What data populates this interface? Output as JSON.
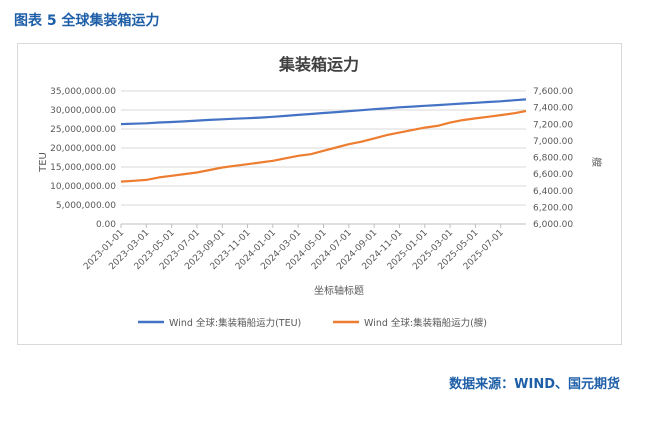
{
  "caption": "图表 5  全球集装箱运力",
  "source": "数据来源：WIND、国元期货",
  "colors": {
    "series1": "#4472c4",
    "series2": "#ed7d31",
    "grid": "#d9d9d9",
    "axis_text": "#595959",
    "caption": "#1f5fa8"
  },
  "chart_data": {
    "type": "line",
    "title": "集装箱运力",
    "xlabel": "坐标轴标题",
    "ylabel_left": "TEU",
    "ylabel_right": "艘",
    "ylim_left": [
      0,
      35000000
    ],
    "ylim_right": [
      6000,
      7600
    ],
    "left_ticks": [
      "35,000,000.00",
      "30,000,000.00",
      "25,000,000.00",
      "20,000,000.00",
      "15,000,000.00",
      "10,000,000.00",
      "5,000,000.00",
      "0.00"
    ],
    "right_ticks": [
      "7,600.00",
      "7,400.00",
      "7,200.00",
      "7,000.00",
      "6,800.00",
      "6,600.00",
      "6,400.00",
      "6,200.00",
      "6,000.00"
    ],
    "x_ticks": [
      "2023-01-01",
      "2023-03-01",
      "2023-05-01",
      "2023-07-01",
      "2023-09-01",
      "2023-11-01",
      "2024-01-01",
      "2024-03-01",
      "2024-05-01",
      "2024-07-01",
      "2024-09-01",
      "2024-11-01",
      "2025-01-01",
      "2025-03-01",
      "2025-05-01",
      "2025-07-01"
    ],
    "x": [
      "2023-01",
      "2023-02",
      "2023-03",
      "2023-04",
      "2023-05",
      "2023-06",
      "2023-07",
      "2023-08",
      "2023-09",
      "2023-10",
      "2023-11",
      "2023-12",
      "2024-01",
      "2024-02",
      "2024-03",
      "2024-04",
      "2024-05",
      "2024-06",
      "2024-07",
      "2024-08",
      "2024-09",
      "2024-10",
      "2024-11",
      "2024-12",
      "2025-01",
      "2025-02",
      "2025-03",
      "2025-04",
      "2025-05",
      "2025-06",
      "2025-07",
      "2025-08",
      "2025-09"
    ],
    "series": [
      {
        "name": "Wind 全球:集装箱船运力(TEU)",
        "axis": "left",
        "values": [
          26300000,
          26400000,
          26500000,
          26700000,
          26850000,
          27000000,
          27200000,
          27400000,
          27550000,
          27700000,
          27850000,
          28000000,
          28200000,
          28450000,
          28700000,
          28950000,
          29200000,
          29450000,
          29700000,
          29950000,
          30200000,
          30450000,
          30700000,
          30900000,
          31100000,
          31300000,
          31500000,
          31700000,
          31900000,
          32100000,
          32300000,
          32550000,
          32800000
        ]
      },
      {
        "name": "Wind 全球:集装箱船运力(艘)",
        "axis": "right",
        "values": [
          6510,
          6520,
          6530,
          6560,
          6580,
          6600,
          6620,
          6650,
          6680,
          6700,
          6720,
          6740,
          6760,
          6790,
          6820,
          6840,
          6880,
          6920,
          6960,
          6990,
          7030,
          7070,
          7100,
          7130,
          7160,
          7180,
          7220,
          7250,
          7270,
          7290,
          7310,
          7330,
          7360
        ]
      }
    ],
    "legend_position": "bottom",
    "grid": true
  }
}
